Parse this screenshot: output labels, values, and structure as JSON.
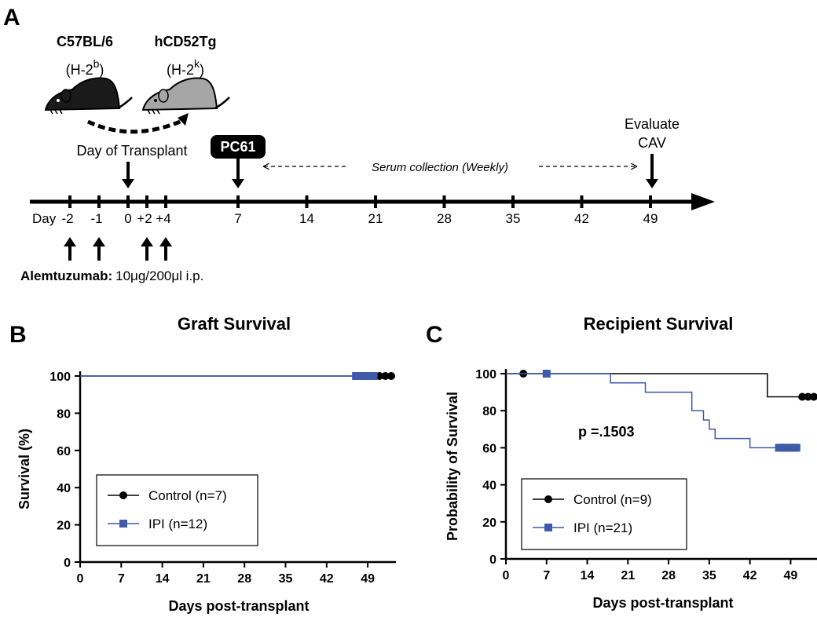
{
  "panelA": {
    "letter": "A",
    "strain_donor": "C57BL/6",
    "strain_donor_haplotype_base": "(H-2",
    "strain_donor_haplotype_sup": "b",
    "strain_donor_haplotype_end": ")",
    "strain_recipient": "hCD52Tg",
    "strain_recipient_haplotype_base": "(H-2",
    "strain_recipient_haplotype_sup": "k",
    "strain_recipient_haplotype_end": ")",
    "transplant_label": "Day of Transplant",
    "pc61_label": "PC61",
    "serum_label": "Serum collection (Weekly)",
    "evaluate_line1": "Evaluate",
    "evaluate_line2": "CAV",
    "day_prefix": "Day",
    "day_ticks": [
      -2,
      -1,
      0,
      2,
      4,
      7,
      14,
      21,
      28,
      35,
      42,
      49
    ],
    "day_labels": [
      "-2",
      "-1",
      "0",
      "+2",
      "+4",
      "7",
      "14",
      "21",
      "28",
      "35",
      "42",
      "49"
    ],
    "alemtuzumab_days": [
      -2,
      -1,
      2,
      4
    ],
    "alemtuzumab_label": "Alemtuzumab:",
    "alemtuzumab_dose": "10μg/200μl i.p."
  },
  "chart_data": [
    {
      "panel": "B",
      "type": "line",
      "subtype": "kaplan-meier",
      "title": "Graft Survival",
      "xlabel": "Days post-transplant",
      "ylabel": "Survival (%)",
      "xlim": [
        0,
        53
      ],
      "ylim": [
        0,
        100
      ],
      "xticks": [
        0,
        7,
        14,
        21,
        28,
        35,
        42,
        49
      ],
      "yticks": [
        0,
        20,
        40,
        60,
        80,
        100
      ],
      "legend": "bottom-left",
      "series": [
        {
          "name": "Control (n=7)",
          "color": "#000000",
          "marker": "circle",
          "steps": [
            [
              0,
              100
            ],
            [
              53,
              100
            ]
          ],
          "censored": [
            51,
            52,
            53
          ]
        },
        {
          "name": "IPI (n=12)",
          "color": "#3f5aa8",
          "marker": "square",
          "steps": [
            [
              0,
              100
            ],
            [
              50,
              100
            ]
          ],
          "censored": [
            47,
            47.5,
            48,
            48.5,
            49,
            49.5,
            50
          ]
        }
      ]
    },
    {
      "panel": "C",
      "type": "line",
      "subtype": "kaplan-meier",
      "title": "Recipient Survival",
      "xlabel": "Days post-transplant",
      "ylabel": "Probability of Survival",
      "annotation": "p =.1503",
      "xlim": [
        0,
        53
      ],
      "ylim": [
        0,
        100
      ],
      "xticks": [
        0,
        7,
        14,
        21,
        28,
        35,
        42,
        49
      ],
      "yticks": [
        0,
        20,
        40,
        60,
        80,
        100
      ],
      "legend": "bottom-left",
      "series": [
        {
          "name": "Control (n=9)",
          "color": "#000000",
          "marker": "circle",
          "steps": [
            [
              0,
              100
            ],
            [
              45,
              100
            ],
            [
              45,
              87.5
            ],
            [
              53,
              87.5
            ]
          ],
          "censored": [
            3,
            51,
            52,
            53
          ]
        },
        {
          "name": "IPI (n=21)",
          "color": "#3f5aa8",
          "marker": "square",
          "steps": [
            [
              0,
              100
            ],
            [
              18,
              100
            ],
            [
              18,
              95
            ],
            [
              24,
              95
            ],
            [
              24,
              90
            ],
            [
              32,
              90
            ],
            [
              32,
              80
            ],
            [
              34,
              80
            ],
            [
              34,
              75
            ],
            [
              35,
              75
            ],
            [
              35,
              70
            ],
            [
              36,
              70
            ],
            [
              36,
              65
            ],
            [
              42,
              65
            ],
            [
              42,
              60
            ],
            [
              50,
              60
            ]
          ],
          "censored": [
            7,
            47,
            47.5,
            48,
            48.5,
            49,
            49.5,
            50
          ]
        }
      ]
    }
  ]
}
